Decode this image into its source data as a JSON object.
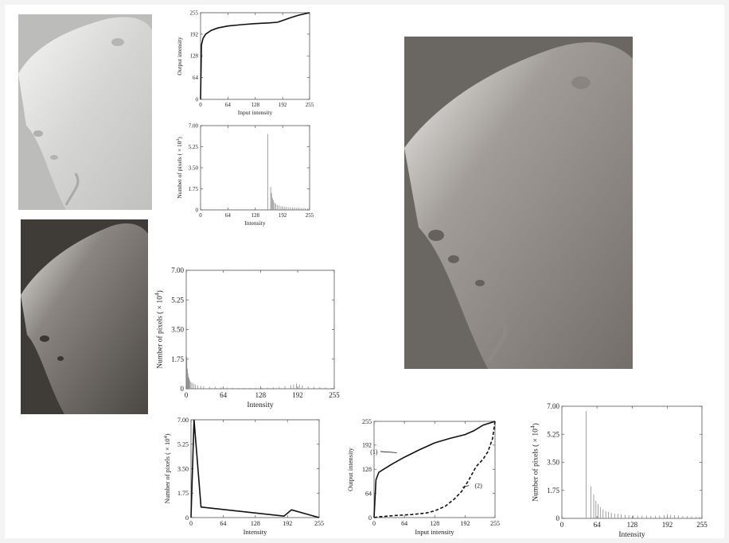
{
  "chart_data": [
    {
      "type": "line",
      "id": "transform-top",
      "xlabel": "Input intensity",
      "ylabel": "Output intensity",
      "xlim": [
        0,
        255
      ],
      "ylim": [
        0,
        255
      ],
      "xticks": [
        "0",
        "64",
        "128",
        "192",
        "255"
      ],
      "yticks": [
        "0",
        "64",
        "128",
        "192",
        "255"
      ],
      "series": [
        {
          "x": [
            0,
            2,
            6,
            12,
            25,
            40,
            64,
            96,
            128,
            160,
            180,
            192,
            210,
            230,
            255
          ],
          "y": [
            0,
            160,
            180,
            192,
            203,
            210,
            216,
            220,
            223,
            225,
            227,
            232,
            240,
            248,
            255
          ]
        }
      ]
    },
    {
      "type": "bar",
      "id": "hist-top",
      "xlabel": "Intensity",
      "ylabel": "Number of pixels ( × 10",
      "ylabel_exp": "4",
      "ylabel_close": ")",
      "xlim": [
        0,
        255
      ],
      "ylim": [
        0,
        7
      ],
      "xticks": [
        "0",
        "64",
        "128",
        "192",
        "255"
      ],
      "yticks": [
        "0",
        "1.75",
        "3.50",
        "5.25",
        "7.00"
      ],
      "spikes": [
        [
          157,
          6.3
        ],
        [
          164,
          1.9
        ],
        [
          166,
          1.4
        ],
        [
          168,
          1.0
        ],
        [
          170,
          0.8
        ],
        [
          173,
          0.6
        ],
        [
          176,
          0.5
        ],
        [
          180,
          0.4
        ],
        [
          184,
          0.35
        ],
        [
          188,
          0.3
        ],
        [
          192,
          0.3
        ],
        [
          196,
          0.25
        ],
        [
          200,
          0.25
        ],
        [
          205,
          0.22
        ],
        [
          210,
          0.22
        ],
        [
          215,
          0.2
        ],
        [
          220,
          0.2
        ],
        [
          225,
          0.18
        ],
        [
          230,
          0.18
        ],
        [
          235,
          0.16
        ],
        [
          240,
          0.15
        ],
        [
          245,
          0.14
        ],
        [
          250,
          0.12
        ]
      ]
    },
    {
      "type": "bar",
      "id": "hist-middle",
      "xlabel": "Intensity",
      "ylabel": "Number of pixels ( × 10",
      "ylabel_exp": "4",
      "ylabel_close": ")",
      "xlim": [
        0,
        255
      ],
      "ylim": [
        0,
        7
      ],
      "xticks": [
        "0",
        "64",
        "128",
        "192",
        "255"
      ],
      "yticks": [
        "0",
        "1.75",
        "3.50",
        "5.25",
        "7.00"
      ],
      "spikes": [
        [
          1,
          1.9
        ],
        [
          2,
          1.2
        ],
        [
          3,
          0.9
        ],
        [
          4,
          0.7
        ],
        [
          5,
          0.6
        ],
        [
          6,
          0.5
        ],
        [
          8,
          0.4
        ],
        [
          10,
          0.35
        ],
        [
          13,
          0.3
        ],
        [
          16,
          0.25
        ],
        [
          20,
          0.2
        ],
        [
          25,
          0.17
        ],
        [
          30,
          0.15
        ],
        [
          40,
          0.12
        ],
        [
          50,
          0.1
        ],
        [
          60,
          0.08
        ],
        [
          70,
          0.07
        ],
        [
          80,
          0.06
        ],
        [
          90,
          0.05
        ],
        [
          100,
          0.05
        ],
        [
          110,
          0.05
        ],
        [
          120,
          0.05
        ],
        [
          130,
          0.06
        ],
        [
          140,
          0.07
        ],
        [
          150,
          0.08
        ],
        [
          160,
          0.1
        ],
        [
          170,
          0.15
        ],
        [
          180,
          0.2
        ],
        [
          185,
          0.25
        ],
        [
          190,
          0.3
        ],
        [
          195,
          0.25
        ],
        [
          200,
          0.2
        ],
        [
          210,
          0.15
        ],
        [
          220,
          0.12
        ],
        [
          230,
          0.1
        ],
        [
          240,
          0.08
        ],
        [
          250,
          0.05
        ]
      ]
    },
    {
      "type": "line",
      "id": "hist-specified",
      "xlabel": "Intensity",
      "ylabel": "Number of pixels ( × 10",
      "ylabel_exp": "4",
      "ylabel_close": ")",
      "xlim": [
        0,
        255
      ],
      "ylim": [
        0,
        7
      ],
      "xticks": [
        "0",
        "64",
        "128",
        "192",
        "255"
      ],
      "yticks": [
        "0",
        "1.75",
        "3.50",
        "5.25",
        "7.00"
      ],
      "series": [
        {
          "x": [
            0,
            6,
            20,
            185,
            200,
            255
          ],
          "y": [
            0,
            7.0,
            0.75,
            0.1,
            0.55,
            0.0
          ]
        }
      ]
    },
    {
      "type": "line",
      "id": "transform-bottom",
      "xlabel": "Input intensity",
      "ylabel": "Output intensity",
      "xlim": [
        0,
        255
      ],
      "ylim": [
        0,
        255
      ],
      "xticks": [
        "0",
        "64",
        "128",
        "192",
        "255"
      ],
      "yticks": [
        "0",
        "64",
        "128",
        "192",
        "255"
      ],
      "series": [
        {
          "name": "(1)",
          "style": "solid",
          "x": [
            0,
            4,
            10,
            20,
            40,
            64,
            96,
            128,
            160,
            192,
            210,
            230,
            255
          ],
          "y": [
            0,
            100,
            120,
            128,
            143,
            160,
            180,
            198,
            210,
            220,
            230,
            245,
            255
          ]
        },
        {
          "name": "(2)",
          "style": "dashed",
          "x": [
            0,
            10,
            40,
            80,
            110,
            128,
            150,
            170,
            185,
            200,
            215,
            230,
            240,
            250,
            255
          ],
          "y": [
            0,
            2,
            5,
            8,
            12,
            18,
            30,
            50,
            70,
            100,
            135,
            155,
            175,
            210,
            255
          ]
        }
      ]
    },
    {
      "type": "bar",
      "id": "hist-result",
      "xlabel": "Intensity",
      "ylabel": "Number of pixels ( × 10",
      "ylabel_exp": "4",
      "ylabel_close": ")",
      "xlim": [
        0,
        255
      ],
      "ylim": [
        0,
        7
      ],
      "xticks": [
        "0",
        "64",
        "128",
        "192",
        "255"
      ],
      "yticks": [
        "0",
        "1.75",
        "3.50",
        "5.25",
        "7.00"
      ],
      "spikes": [
        [
          44,
          6.7
        ],
        [
          53,
          2.0
        ],
        [
          58,
          1.5
        ],
        [
          62,
          1.1
        ],
        [
          66,
          0.9
        ],
        [
          70,
          0.7
        ],
        [
          75,
          0.55
        ],
        [
          80,
          0.45
        ],
        [
          85,
          0.4
        ],
        [
          90,
          0.35
        ],
        [
          96,
          0.3
        ],
        [
          102,
          0.28
        ],
        [
          108,
          0.25
        ],
        [
          115,
          0.22
        ],
        [
          122,
          0.2
        ],
        [
          130,
          0.2
        ],
        [
          138,
          0.18
        ],
        [
          146,
          0.18
        ],
        [
          154,
          0.17
        ],
        [
          162,
          0.16
        ],
        [
          170,
          0.16
        ],
        [
          178,
          0.17
        ],
        [
          186,
          0.2
        ],
        [
          192,
          0.25
        ],
        [
          198,
          0.22
        ],
        [
          205,
          0.2
        ],
        [
          212,
          0.18
        ],
        [
          220,
          0.15
        ],
        [
          228,
          0.14
        ],
        [
          236,
          0.12
        ],
        [
          244,
          0.1
        ],
        [
          250,
          0.08
        ]
      ]
    }
  ],
  "images": [
    {
      "name": "phobos-original",
      "bg": "#bcbcba",
      "moon": [
        "#f4f4f2",
        "#c8c8c6"
      ]
    },
    {
      "name": "phobos-equalized",
      "bg": "#3f3b37",
      "moon": [
        "#e8e8e6",
        "#55504b"
      ]
    },
    {
      "name": "phobos-specified",
      "bg": "#6a6661",
      "moon": [
        "#f0f0ee",
        "#77726d"
      ]
    }
  ]
}
